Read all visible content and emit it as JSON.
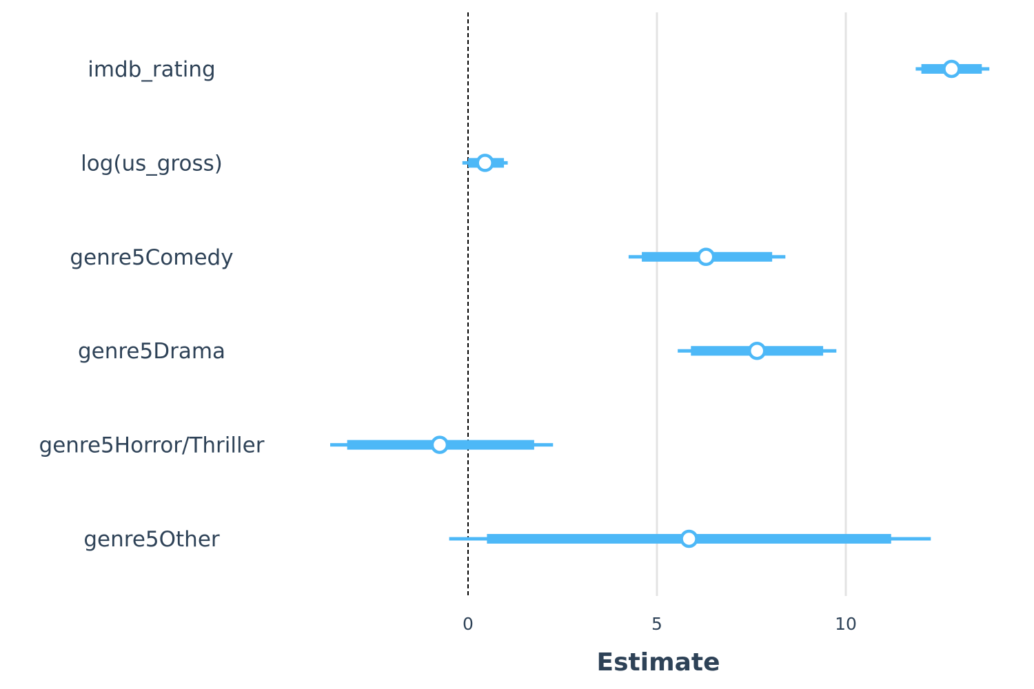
{
  "chart_data": {
    "type": "coefficient-interval",
    "xlabel": "Estimate",
    "ylabel": "",
    "title": "",
    "xlim": [
      -3.65,
      13.8
    ],
    "x_ticks": [
      0,
      5,
      10
    ],
    "x_tick_labels": [
      "0",
      "5",
      "10"
    ],
    "grid": "vertical major gridlines",
    "reference_line": 0,
    "terms": [
      {
        "term": "imdb_rating",
        "estimate": 12.8,
        "inner": [
          12.0,
          13.6
        ],
        "outer": [
          11.85,
          13.8
        ]
      },
      {
        "term": "log(us_gross)",
        "estimate": 0.45,
        "inner": [
          0.0,
          0.95
        ],
        "outer": [
          -0.15,
          1.05
        ]
      },
      {
        "term": "genre5Comedy",
        "estimate": 6.3,
        "inner": [
          4.6,
          8.05
        ],
        "outer": [
          4.25,
          8.4
        ]
      },
      {
        "term": "genre5Drama",
        "estimate": 7.65,
        "inner": [
          5.9,
          9.4
        ],
        "outer": [
          5.55,
          9.75
        ]
      },
      {
        "term": "genre5Horror/Thriller",
        "estimate": -0.75,
        "inner": [
          -3.2,
          1.75
        ],
        "outer": [
          -3.65,
          2.25
        ]
      },
      {
        "term": "genre5Other",
        "estimate": 5.85,
        "inner": [
          0.5,
          11.2
        ],
        "outer": [
          -0.5,
          12.25
        ]
      }
    ],
    "colors": {
      "interval": "#4db8f7",
      "point_fill": "#ffffff",
      "gridline": "#e3e3e3",
      "reference_line": "#000000",
      "text": "#2e4257"
    }
  }
}
